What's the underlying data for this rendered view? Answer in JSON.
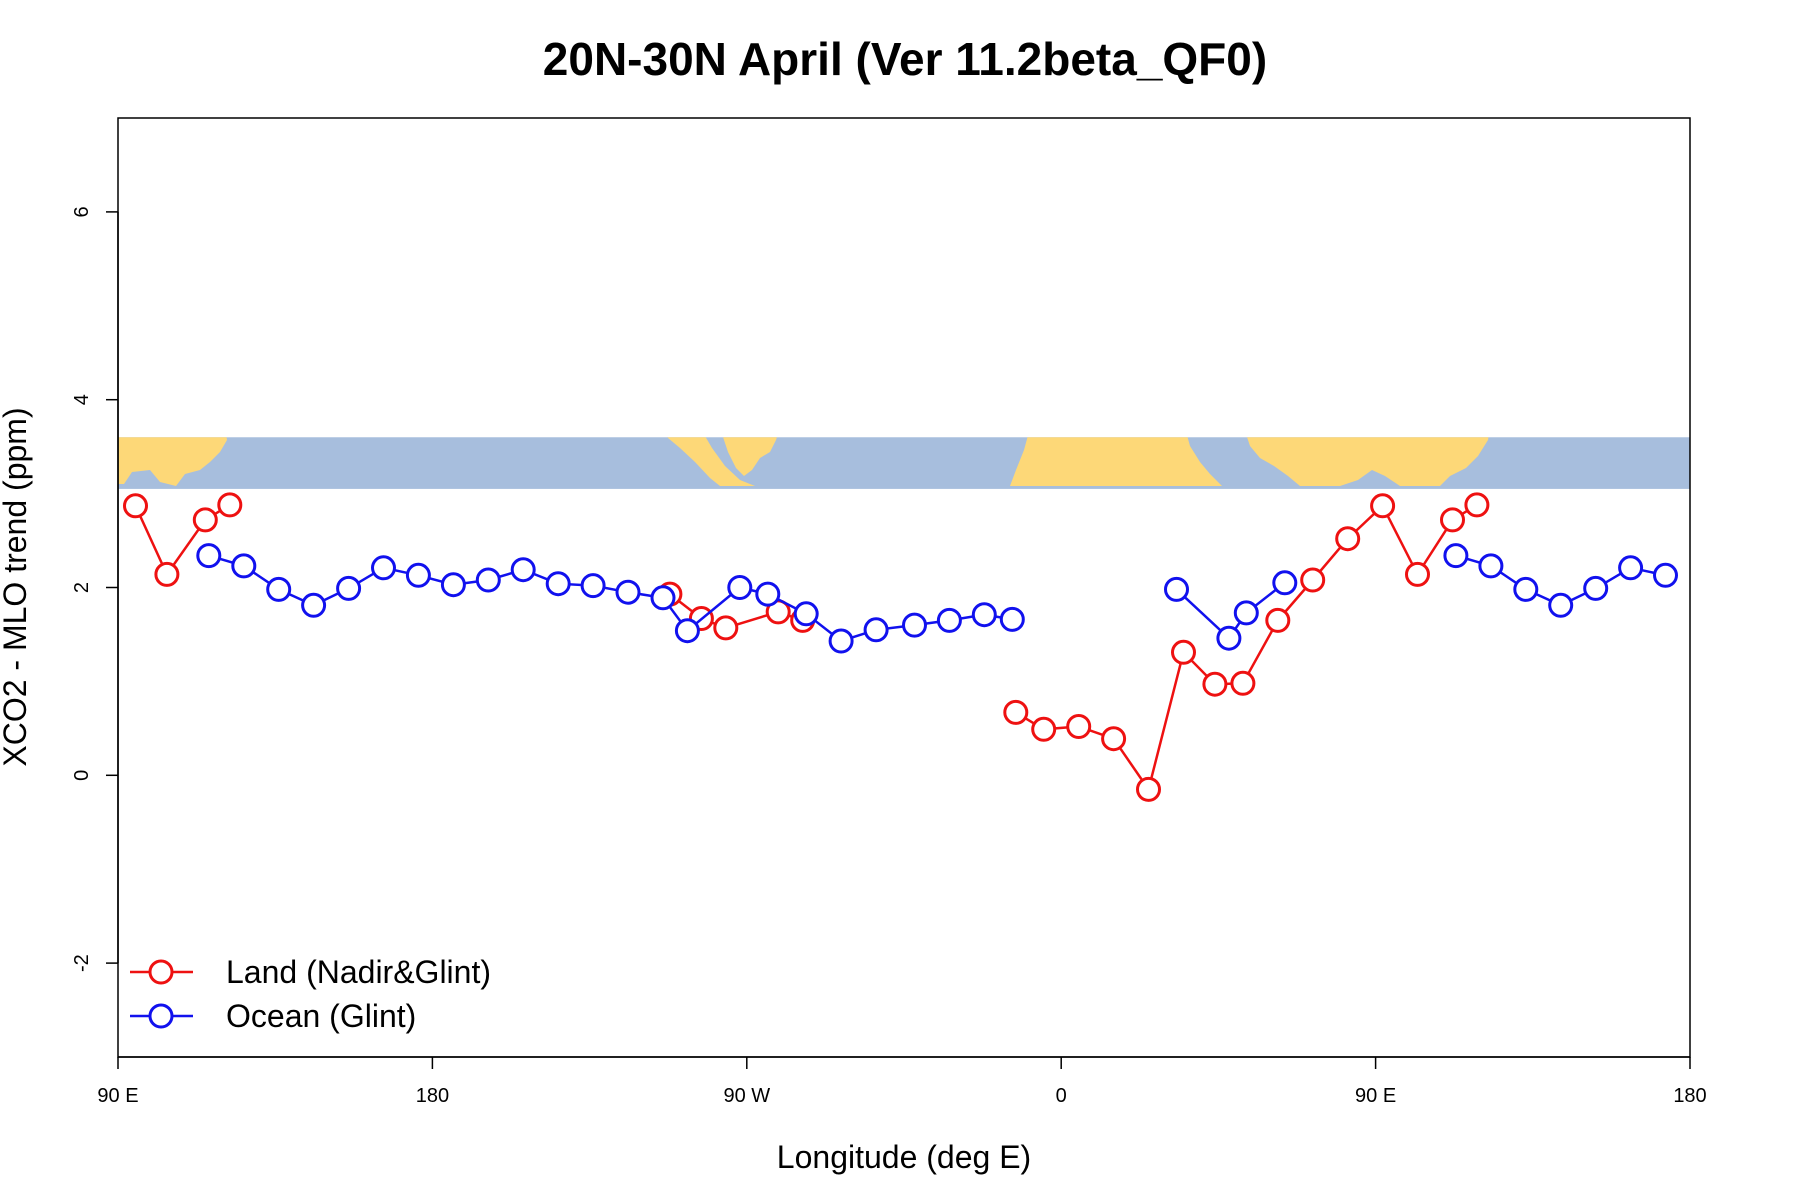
{
  "chart_data": {
    "type": "line",
    "title": "20N-30N April (Ver 11.2beta_QF0)",
    "xlabel": "Longitude (deg E)",
    "ylabel": "XCO2 - MLO trend (ppm)",
    "xlim": [
      90,
      540
    ],
    "ylim": [
      -3,
      7
    ],
    "x_ticks": [
      {
        "value": 90,
        "label": "90 E"
      },
      {
        "value": 180,
        "label": "180"
      },
      {
        "value": 270,
        "label": "90 W"
      },
      {
        "value": 360,
        "label": "0"
      },
      {
        "value": 450,
        "label": "90 E"
      },
      {
        "value": 540,
        "label": "180"
      }
    ],
    "y_ticks": [
      {
        "value": -2,
        "label": "-2"
      },
      {
        "value": 0,
        "label": "0"
      },
      {
        "value": 2,
        "label": "2"
      },
      {
        "value": 4,
        "label": "4"
      },
      {
        "value": 6,
        "label": "6"
      }
    ],
    "grid": false,
    "legend_position": "bottom-left",
    "map_strip": {
      "y_range": [
        3.05,
        3.6
      ],
      "ocean_color": "#a7bedd",
      "land_color": "#fdd878"
    },
    "series": [
      {
        "name": "Land (Nadir&Glint)",
        "color": "#ee1111",
        "segments": [
          [
            [
              95,
              2.87
            ],
            [
              104,
              2.14
            ],
            [
              115,
              2.72
            ],
            [
              122,
              2.88
            ]
          ],
          [
            [
              248,
              1.93
            ],
            [
              257,
              1.67
            ],
            [
              264,
              1.57
            ],
            [
              279,
              1.74
            ],
            [
              286,
              1.65
            ]
          ],
          [
            [
              347,
              0.67
            ],
            [
              355,
              0.49
            ],
            [
              365,
              0.52
            ],
            [
              375,
              0.39
            ],
            [
              385,
              -0.15
            ],
            [
              395,
              1.31
            ],
            [
              404,
              0.97
            ],
            [
              412,
              0.98
            ],
            [
              422,
              1.65
            ],
            [
              432,
              2.08
            ],
            [
              442,
              2.52
            ],
            [
              452,
              2.87
            ],
            [
              462,
              2.14
            ],
            [
              472,
              2.72
            ],
            [
              479,
              2.88
            ]
          ]
        ]
      },
      {
        "name": "Ocean (Glint)",
        "color": "#1111ee",
        "segments": [
          [
            [
              116,
              2.34
            ],
            [
              126,
              2.23
            ],
            [
              136,
              1.98
            ],
            [
              146,
              1.81
            ],
            [
              156,
              1.99
            ],
            [
              166,
              2.21
            ],
            [
              176,
              2.13
            ],
            [
              186,
              2.03
            ],
            [
              196,
              2.08
            ],
            [
              206,
              2.19
            ],
            [
              216,
              2.04
            ],
            [
              226,
              2.02
            ],
            [
              236,
              1.95
            ],
            [
              246,
              1.89
            ],
            [
              253,
              1.54
            ],
            [
              268,
              2.0
            ],
            [
              276,
              1.93
            ],
            [
              287,
              1.72
            ],
            [
              297,
              1.43
            ],
            [
              307,
              1.55
            ],
            [
              318,
              1.6
            ],
            [
              328,
              1.65
            ],
            [
              338,
              1.71
            ],
            [
              346,
              1.66
            ]
          ],
          [
            [
              393,
              1.98
            ],
            [
              408,
              1.46
            ],
            [
              413,
              1.73
            ],
            [
              424,
              2.05
            ]
          ],
          [
            [
              473,
              2.34
            ],
            [
              483,
              2.23
            ],
            [
              493,
              1.98
            ],
            [
              503,
              1.81
            ],
            [
              513,
              1.99
            ],
            [
              523,
              2.21
            ],
            [
              533,
              2.13
            ]
          ]
        ]
      }
    ]
  }
}
